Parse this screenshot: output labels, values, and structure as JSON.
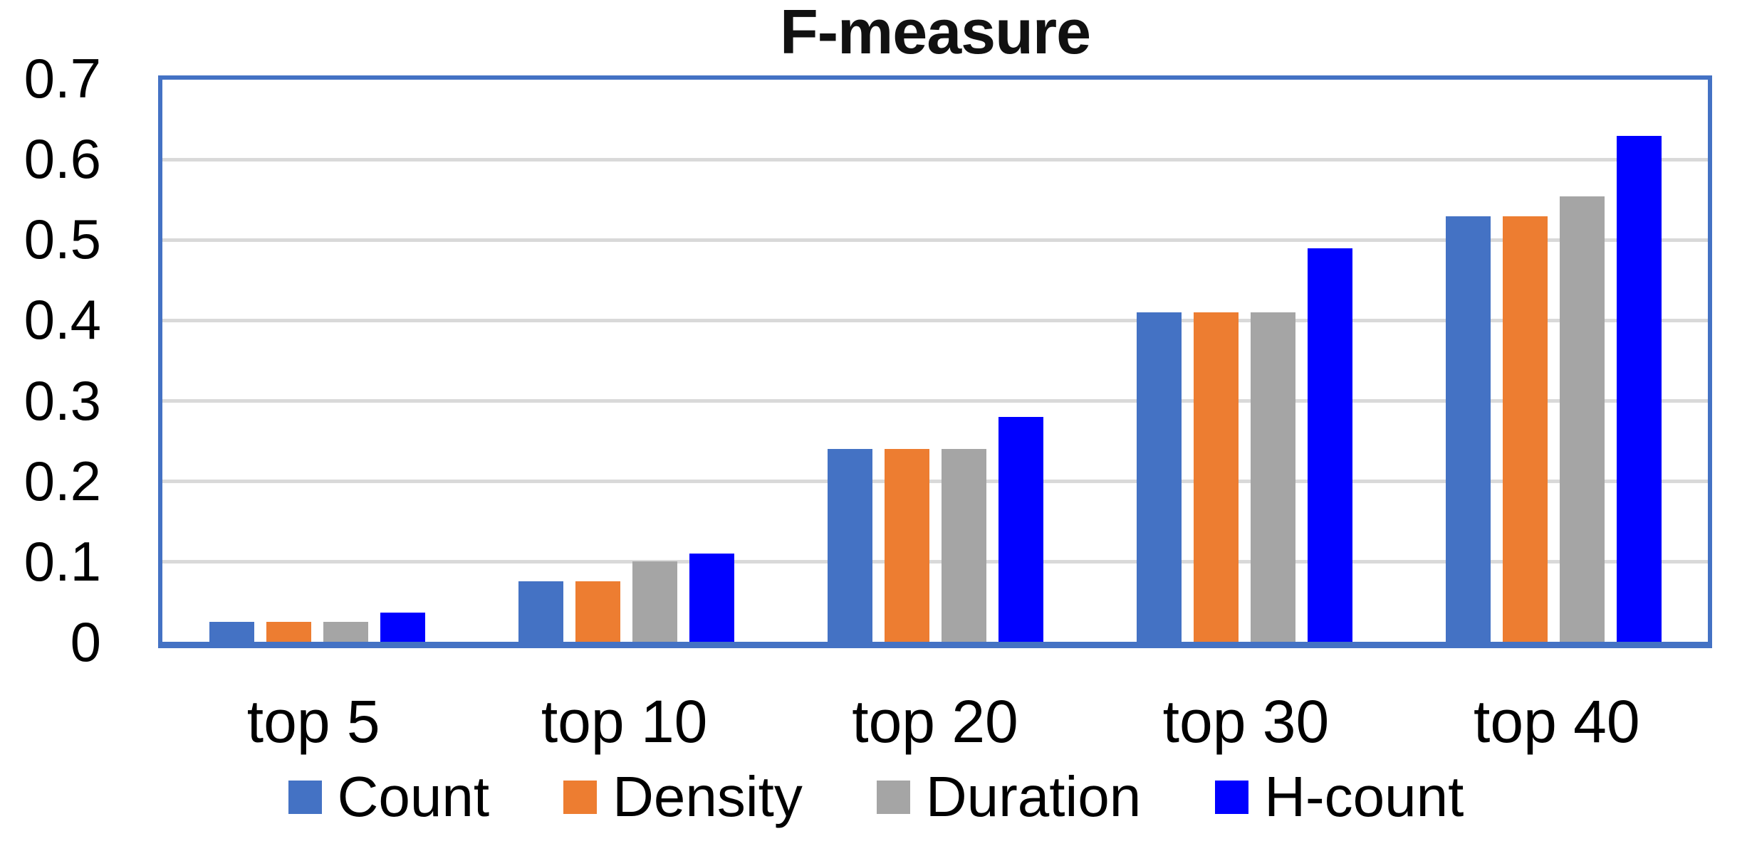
{
  "chart_data": {
    "type": "bar",
    "title": "F-measure",
    "categories": [
      "top 5",
      "top 10",
      "top 20",
      "top 30",
      "top 40"
    ],
    "series": [
      {
        "name": "Count",
        "color": "#4472C4",
        "values": [
          0.025,
          0.075,
          0.24,
          0.41,
          0.53
        ]
      },
      {
        "name": "Density",
        "color": "#ED7D31",
        "values": [
          0.025,
          0.075,
          0.24,
          0.41,
          0.53
        ]
      },
      {
        "name": "Duration",
        "color": "#A5A5A5",
        "values": [
          0.025,
          0.1,
          0.24,
          0.41,
          0.555
        ]
      },
      {
        "name": "H-count",
        "color": "#0000FF",
        "values": [
          0.036,
          0.11,
          0.28,
          0.49,
          0.63
        ]
      }
    ],
    "xlabel": "",
    "ylabel": "",
    "ylim": [
      0,
      0.7
    ],
    "yticks": [
      0,
      0.1,
      0.2,
      0.3,
      0.4,
      0.5,
      0.6,
      0.7
    ],
    "ytick_labels": [
      "0",
      "0.1",
      "0.2",
      "0.3",
      "0.4",
      "0.5",
      "0.6",
      "0.7"
    ],
    "grid": true,
    "legend_position": "bottom",
    "colors": {
      "plot_border": "#4472C4",
      "gridline": "#D9D9D9",
      "background": "#FFFFFF",
      "text": "#000000"
    }
  }
}
